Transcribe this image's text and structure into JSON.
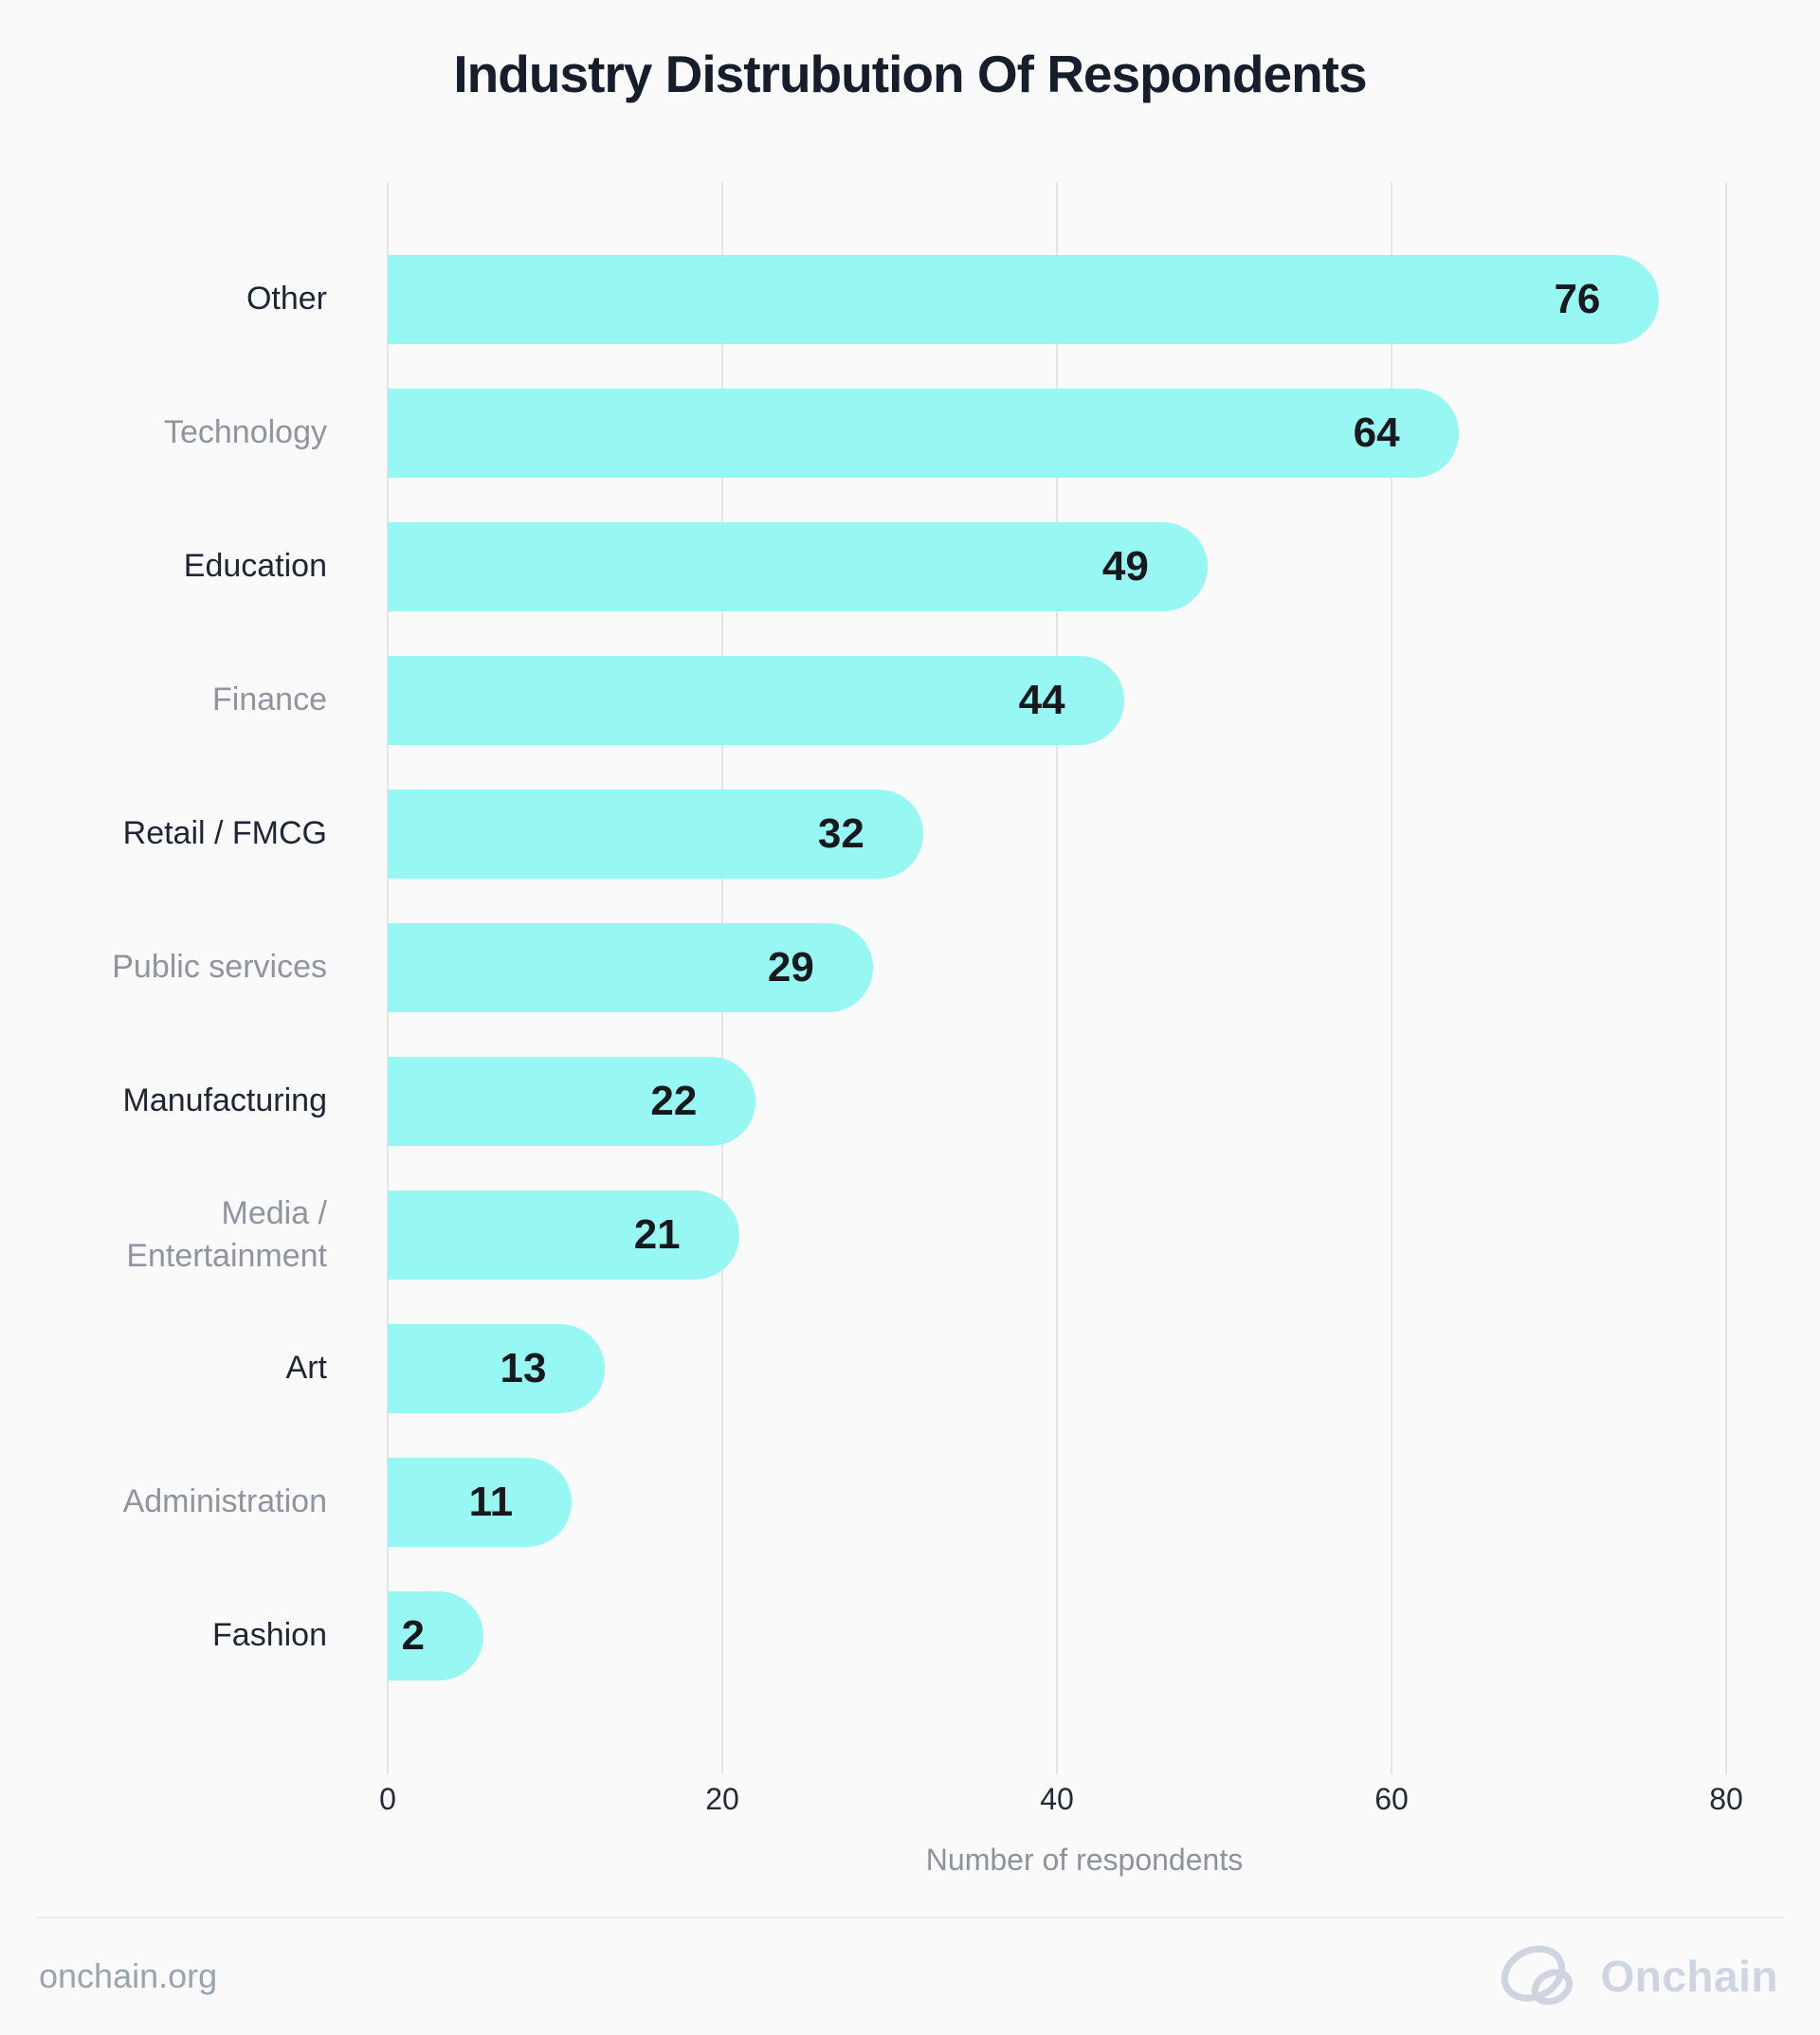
{
  "page": {
    "background": "#FAFAFB"
  },
  "chart_data": {
    "type": "bar",
    "orientation": "horizontal",
    "title": "Industry Distrubution Of Respondents",
    "categories": [
      "Other",
      "Technology",
      "Education",
      "Finance",
      "Retail / FMCG",
      "Public services",
      "Manufacturing",
      "Media /\nEntertainment",
      "Art",
      "Administration",
      "Fashion"
    ],
    "values": [
      76,
      64,
      49,
      44,
      32,
      29,
      22,
      21,
      13,
      11,
      2
    ],
    "xlabel": "Number of respondents",
    "ylabel": "",
    "xlim": [
      0,
      80
    ],
    "xticks": [
      0,
      20,
      40,
      60,
      80
    ],
    "grid": "vertical-only",
    "legend": "none",
    "bar_color": "#97F7F2",
    "value_label_color": "#17191D",
    "category_label_color_dark": "#1E2635",
    "category_label_color_muted": "#8F949E",
    "gridline_color": "#E5E5E8"
  },
  "footer": {
    "website": "onchain.org",
    "brand": "Onchain"
  }
}
